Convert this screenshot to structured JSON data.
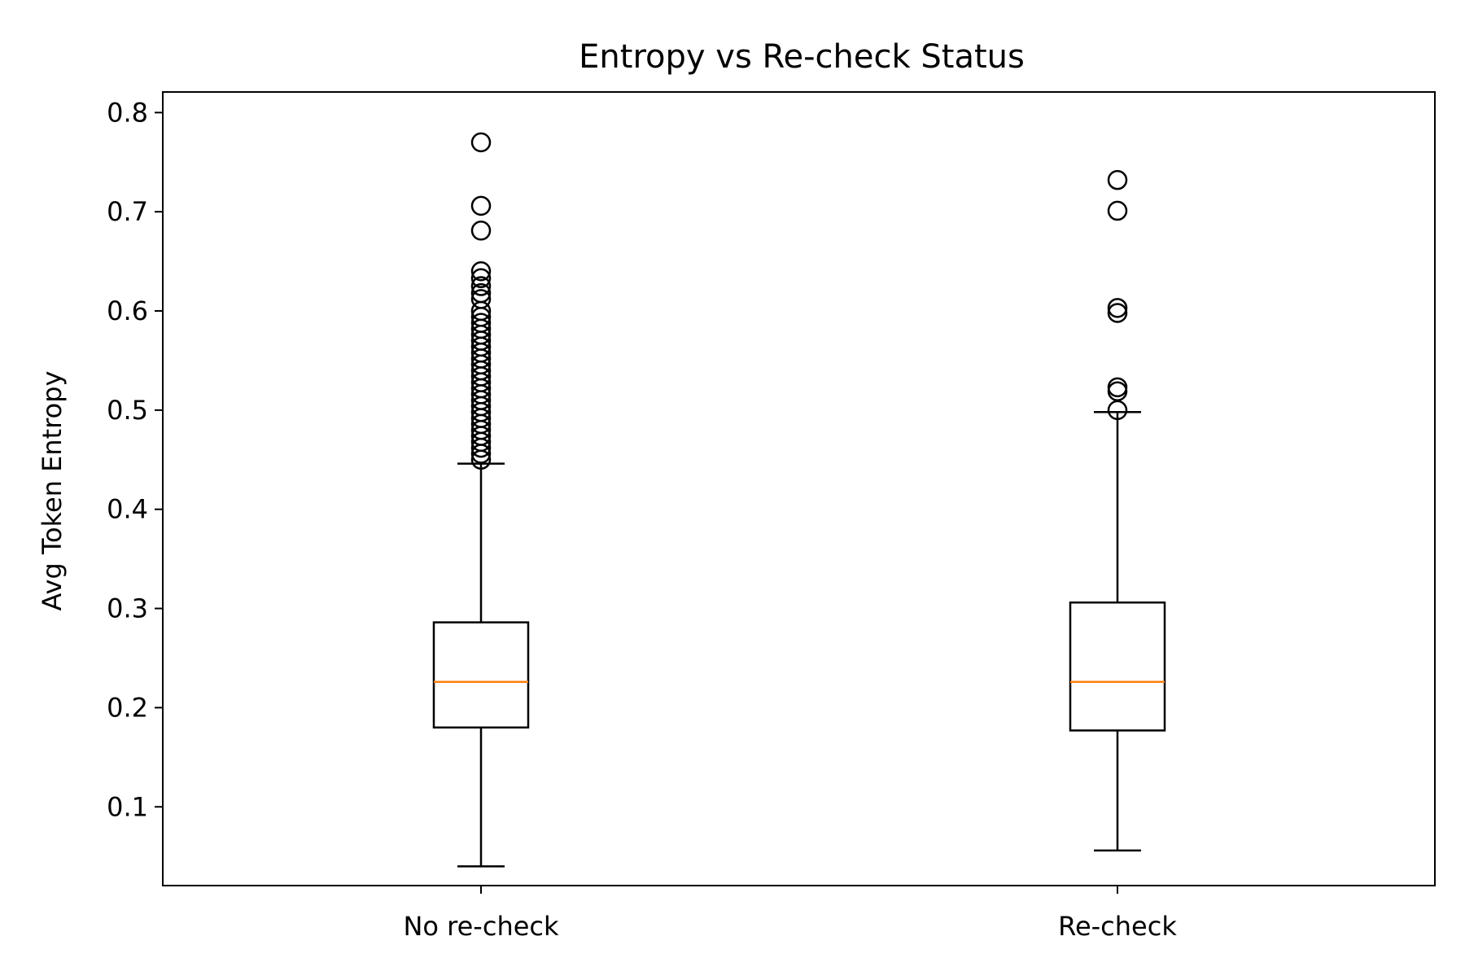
{
  "chart_data": {
    "type": "box",
    "title": "Entropy vs Re-check Status",
    "xlabel": "",
    "ylabel": "Avg Token Entropy",
    "categories": [
      "No re-check",
      "Re-check"
    ],
    "ylim": [
      0.0,
      0.8
    ],
    "yticks": [
      0.1,
      0.2,
      0.3,
      0.4,
      0.5,
      0.6,
      0.7,
      0.8
    ],
    "ytick_labels": [
      "0.1",
      "0.2",
      "0.3",
      "0.4",
      "0.5",
      "0.6",
      "0.7",
      "0.8"
    ],
    "grid": false,
    "legend": "none",
    "boxes": [
      {
        "category": "No re-check",
        "whisker_low": 0.04,
        "q1": 0.18,
        "median": 0.226,
        "q3": 0.286,
        "whisker_high": 0.446,
        "outliers": [
          0.77,
          0.706,
          0.681,
          0.64,
          0.633,
          0.625,
          0.618,
          0.612,
          0.6,
          0.594,
          0.588,
          0.582,
          0.576,
          0.57,
          0.564,
          0.558,
          0.552,
          0.546,
          0.54,
          0.534,
          0.528,
          0.522,
          0.516,
          0.51,
          0.504,
          0.498,
          0.492,
          0.486,
          0.48,
          0.474,
          0.468,
          0.462,
          0.456,
          0.45
        ]
      },
      {
        "category": "Re-check",
        "whisker_low": 0.056,
        "q1": 0.177,
        "median": 0.226,
        "q3": 0.306,
        "whisker_high": 0.498,
        "outliers": [
          0.732,
          0.701,
          0.603,
          0.598,
          0.523,
          0.519,
          0.5
        ]
      }
    ],
    "colors": {
      "box_edge": "#000000",
      "median": "#ff7f0e",
      "outlier": "#000000"
    }
  }
}
